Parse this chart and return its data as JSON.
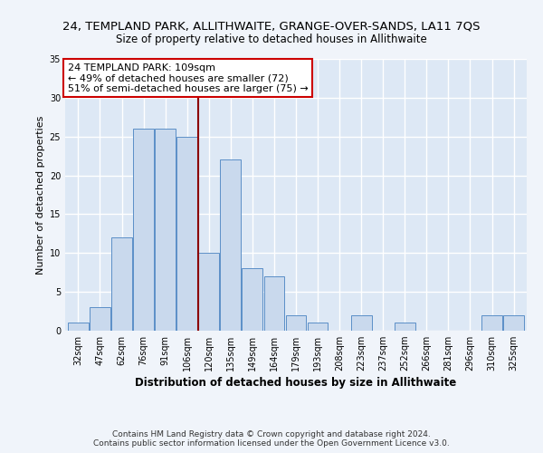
{
  "title": "24, TEMPLAND PARK, ALLITHWAITE, GRANGE-OVER-SANDS, LA11 7QS",
  "subtitle": "Size of property relative to detached houses in Allithwaite",
  "xlabel": "Distribution of detached houses by size in Allithwaite",
  "ylabel": "Number of detached properties",
  "bar_labels": [
    "32sqm",
    "47sqm",
    "62sqm",
    "76sqm",
    "91sqm",
    "106sqm",
    "120sqm",
    "135sqm",
    "149sqm",
    "164sqm",
    "179sqm",
    "193sqm",
    "208sqm",
    "223sqm",
    "237sqm",
    "252sqm",
    "266sqm",
    "281sqm",
    "296sqm",
    "310sqm",
    "325sqm"
  ],
  "bar_values": [
    1,
    3,
    12,
    26,
    26,
    25,
    10,
    22,
    8,
    7,
    2,
    1,
    0,
    2,
    0,
    1,
    0,
    0,
    0,
    2,
    2
  ],
  "bar_color": "#c9d9ed",
  "bar_edge_color": "#5b8fc7",
  "vline_x": 5.5,
  "vline_color": "#8b0000",
  "annotation_text": "24 TEMPLAND PARK: 109sqm\n← 49% of detached houses are smaller (72)\n51% of semi-detached houses are larger (75) →",
  "annotation_box_color": "#ffffff",
  "annotation_box_edge_color": "#cc0000",
  "ylim": [
    0,
    35
  ],
  "yticks": [
    0,
    5,
    10,
    15,
    20,
    25,
    30,
    35
  ],
  "footer_line1": "Contains HM Land Registry data © Crown copyright and database right 2024.",
  "footer_line2": "Contains public sector information licensed under the Open Government Licence v3.0.",
  "fig_bg_color": "#f0f4fa",
  "bg_color": "#dde8f5",
  "grid_color": "#ffffff",
  "title_fontsize": 9.5,
  "subtitle_fontsize": 8.5,
  "axis_label_fontsize": 8,
  "tick_fontsize": 7,
  "annotation_fontsize": 8,
  "footer_fontsize": 6.5
}
